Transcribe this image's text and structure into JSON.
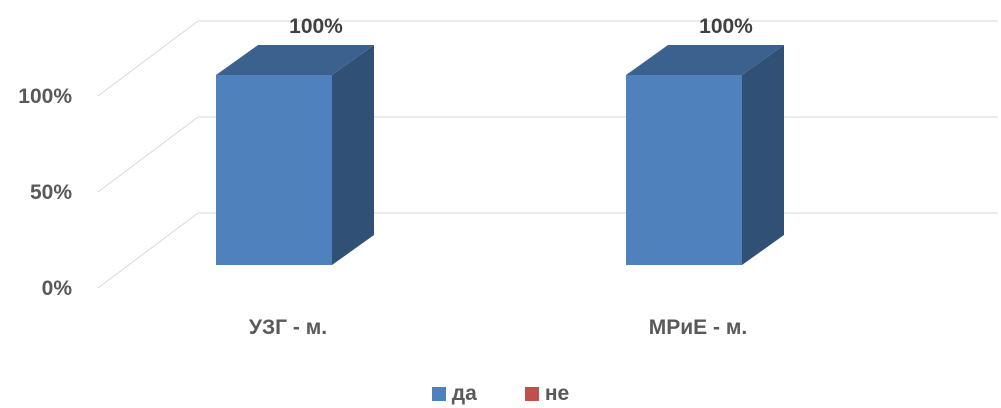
{
  "chart_data": {
    "type": "bar",
    "style": "3d-clustered-column",
    "categories": [
      "УЗГ - м.",
      "МРиЕ - м."
    ],
    "series": [
      {
        "name": "да",
        "color": "#4F81BD",
        "values": [
          100,
          100
        ]
      },
      {
        "name": "не",
        "color": "#C0504D",
        "values": [
          0,
          0
        ]
      }
    ],
    "data_labels": [
      "100%",
      "100%"
    ],
    "y_ticks": [
      "0%",
      "50%",
      "100%"
    ],
    "ylim": [
      0,
      100
    ],
    "grid": true,
    "legend_position": "bottom"
  }
}
